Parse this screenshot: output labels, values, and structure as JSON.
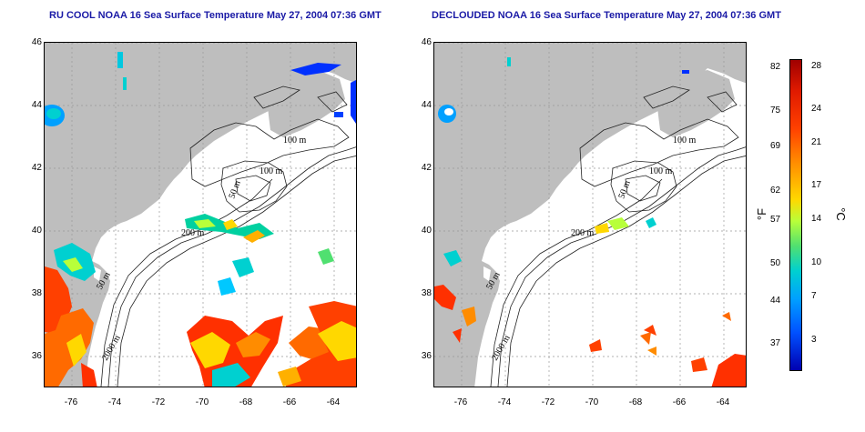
{
  "left_panel": {
    "title": "RU COOL NOAA 16 Sea Surface Temperature May 27, 2004 07:36 GMT",
    "contour_labels": [
      "100 m",
      "100 m",
      "50 m",
      "200 m",
      "50 m",
      "2000 m"
    ]
  },
  "right_panel": {
    "title": "DECLOUDED NOAA 16 Sea Surface Temperature May 27, 2004 07:36 GMT",
    "contour_labels": [
      "100 m",
      "100 m",
      "50 m",
      "200 m",
      "50 m",
      "2000 m"
    ]
  },
  "axes": {
    "x_ticks": [
      "-76",
      "-74",
      "-72",
      "-70",
      "-68",
      "-66",
      "-64"
    ],
    "y_ticks": [
      "46",
      "44",
      "42",
      "40",
      "38",
      "36"
    ],
    "lon_range": [
      -77.2,
      -63.0
    ],
    "lat_range": [
      35.0,
      46.0
    ],
    "grid": "dotted"
  },
  "colorbar": {
    "f_label": "°F",
    "c_label": "°C",
    "f_ticks": [
      "82",
      "75",
      "69",
      "62",
      "57",
      "50",
      "44",
      "37"
    ],
    "c_ticks": [
      "28",
      "24",
      "21",
      "17",
      "14",
      "10",
      "7",
      "3"
    ],
    "colors": [
      "#a00000",
      "#ff4000",
      "#ffd800",
      "#50e070",
      "#00d0d0",
      "#0050ff",
      "#0000b0"
    ]
  },
  "colors": {
    "land": "#bebebe",
    "title": "#1a1aa6"
  }
}
